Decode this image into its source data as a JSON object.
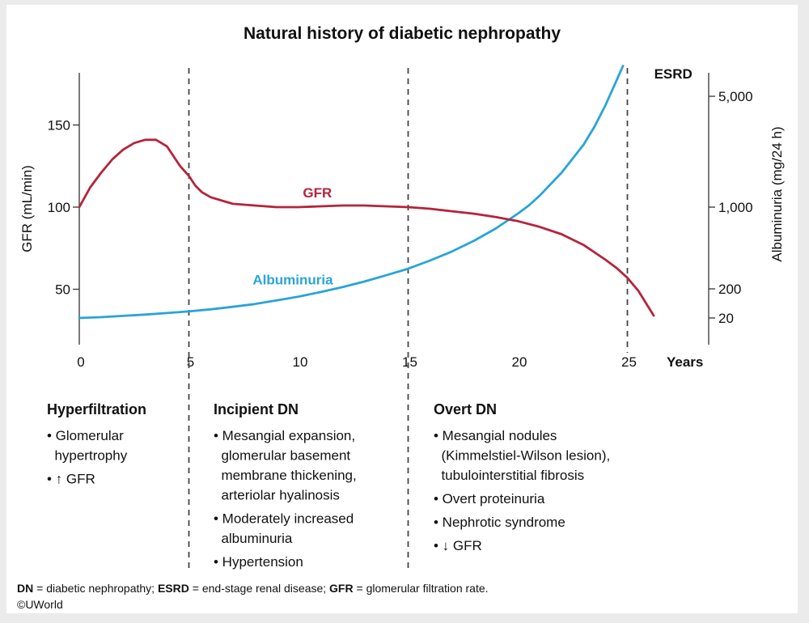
{
  "chart_data": {
    "type": "line",
    "title": "Natural history of diabetic nephropathy",
    "xlabel": "Years",
    "ylabel_left": "GFR (mL/min)",
    "ylabel_right": "Albuminuria (mg/24 h)",
    "xlim": [
      0,
      26
    ],
    "ylim_left": [
      20,
      170
    ],
    "x_ticks": [
      0,
      5,
      10,
      15,
      20,
      25
    ],
    "y_ticks_left": [
      50,
      100,
      150
    ],
    "y_ticks_right": [
      "20",
      "200",
      "1,000",
      "5,000"
    ],
    "right_axis_scale": "nonlinear",
    "grid": false,
    "colors": {
      "gfr": "#b5243b",
      "albuminuria": "#2aa4d6"
    },
    "dividers": {
      "x": [
        5,
        15,
        25
      ],
      "style": "dashed",
      "end_label": "ESRD"
    },
    "series": [
      {
        "name": "GFR",
        "axis": "left",
        "x": [
          0,
          0.5,
          1,
          1.5,
          2,
          2.5,
          3,
          3.5,
          4,
          4.3,
          4.6,
          5,
          5.3,
          5.6,
          6,
          6.5,
          7,
          8,
          9,
          10,
          11,
          12,
          13,
          14,
          15,
          16,
          17,
          18,
          19,
          20,
          21,
          22,
          23,
          24,
          24.5,
          25,
          25.5,
          26.2
        ],
        "y": [
          100,
          112,
          121,
          129,
          135,
          139,
          141,
          141,
          137,
          131,
          125,
          119,
          113,
          109,
          106,
          104,
          102,
          101,
          100,
          100,
          100.5,
          101,
          101,
          100.5,
          100,
          99,
          97.5,
          96,
          94,
          91.5,
          88,
          83.5,
          77,
          68,
          63,
          57,
          49,
          34
        ]
      },
      {
        "name": "Albuminuria",
        "axis": "right",
        "x": [
          0,
          1,
          2,
          3,
          4,
          5,
          6,
          7,
          8,
          9,
          10,
          11,
          12,
          13,
          14,
          15,
          16,
          17,
          18,
          19,
          20,
          20.5,
          21,
          22,
          23,
          23.5,
          24,
          24.3,
          24.6,
          24.8
        ],
        "y_left_equiv": [
          32.5,
          33,
          33.8,
          34.6,
          35.5,
          36.5,
          37.8,
          39.3,
          41,
          43.2,
          45.5,
          48.3,
          51.3,
          54.7,
          58.5,
          62.5,
          67.5,
          73,
          79.5,
          87,
          96,
          101,
          107,
          121,
          138,
          149,
          162,
          171,
          180,
          186
        ]
      }
    ],
    "annotations": [
      {
        "text": "GFR",
        "x": 10.2,
        "y": 106
      },
      {
        "text": "Albuminuria",
        "x": 10.2,
        "y": 53
      },
      {
        "text": "ESRD",
        "x": 26,
        "y": 183
      }
    ]
  },
  "stages": [
    {
      "title": "Hyperfiltration",
      "items": [
        [
          "• Glomerular",
          "  hypertrophy"
        ],
        [
          "• ↑ GFR"
        ]
      ]
    },
    {
      "title": "Incipient DN",
      "items": [
        [
          "• Mesangial expansion,",
          "  glomerular basement",
          "  membrane thickening,",
          "  arteriolar hyalinosis"
        ],
        [
          "• Moderately increased",
          "  albuminuria"
        ],
        [
          "• Hypertension"
        ]
      ]
    },
    {
      "title": "Overt DN",
      "items": [
        [
          "• Mesangial nodules",
          "  (Kimmelstiel-Wilson lesion),",
          "  tubulointerstitial fibrosis"
        ],
        [
          "• Overt proteinuria"
        ],
        [
          "• Nephrotic syndrome"
        ],
        [
          "• ↓ GFR"
        ]
      ]
    }
  ],
  "footer": {
    "abbreviations": [
      {
        "abbr": "DN",
        "def": " = diabetic nephropathy; "
      },
      {
        "abbr": "ESRD",
        "def": " = end-stage renal disease; "
      },
      {
        "abbr": "GFR",
        "def": " = glomerular filtration rate."
      }
    ],
    "copyright": "©UWorld"
  }
}
